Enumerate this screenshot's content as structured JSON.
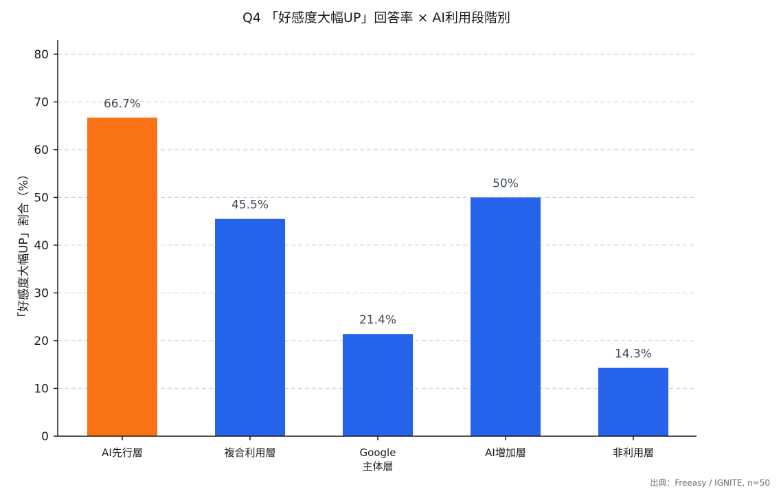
{
  "chart_data": {
    "type": "bar",
    "title": "Q4 「好感度大幅UP」回答率 × AI利用段階別",
    "xlabel": "",
    "ylabel": "「好感度大幅UP」割合（%）",
    "ylim": [
      0,
      83
    ],
    "yticks": [
      0,
      10,
      20,
      30,
      40,
      50,
      60,
      70,
      80
    ],
    "grid": true,
    "categories": [
      [
        "AI先行層"
      ],
      [
        "複合利用層"
      ],
      [
        "Google",
        "主体層"
      ],
      [
        "AI増加層"
      ],
      [
        "非利用層"
      ]
    ],
    "values": [
      66.7,
      45.5,
      21.4,
      50,
      14.3
    ],
    "data_labels": [
      "66.7%",
      "45.5%",
      "21.4%",
      "50%",
      "14.3%"
    ],
    "bar_colors": [
      "#f97316",
      "#2563eb",
      "#2563eb",
      "#2563eb",
      "#2563eb"
    ]
  },
  "source_note": "出典：Freeasy / IGNITE, n=50"
}
